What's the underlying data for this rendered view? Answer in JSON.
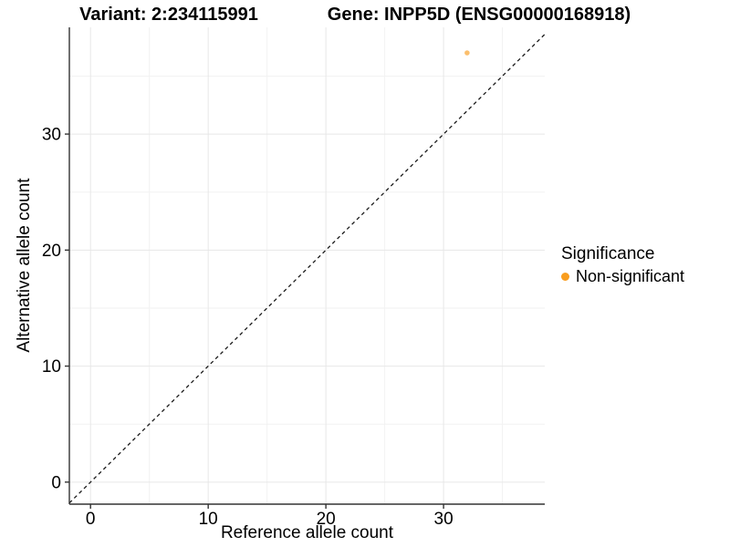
{
  "titles": {
    "variant": "Variant: 2:234115991",
    "gene": "Gene: INPP5D (ENSG00000168918)"
  },
  "chart_data": {
    "type": "scatter",
    "xlabel": "Reference allele count",
    "ylabel": "Alternative allele count",
    "xlim": [
      -1.8,
      38.6
    ],
    "ylim": [
      -1.9,
      39.2
    ],
    "x_major_ticks": [
      0,
      10,
      20,
      30
    ],
    "y_major_ticks": [
      0,
      10,
      20,
      30
    ],
    "x_minor_ticks": [
      5,
      15,
      25,
      35
    ],
    "y_minor_ticks": [
      5,
      15,
      25,
      35
    ],
    "grid": true,
    "reference_line": {
      "type": "identity",
      "slope": 1,
      "intercept": 0,
      "style": "dashed",
      "color": "#1a1a1a"
    },
    "series": [
      {
        "name": "Non-significant",
        "color": "#F99D1E",
        "point_opacity": 0.65,
        "points": [
          {
            "x": 32,
            "y": 37
          }
        ]
      }
    ],
    "legend": {
      "title": "Significance",
      "position": "right",
      "items": [
        {
          "label": "Non-significant",
          "color": "#F99D1E"
        }
      ]
    }
  },
  "colors": {
    "background": "#ffffff",
    "axis_line": "#333333",
    "tick_mark": "#333333",
    "tick_label": "#000000",
    "grid_major": "#e7e7e7",
    "grid_minor": "#f2f2f2",
    "point_orange": "#F99D1E"
  }
}
